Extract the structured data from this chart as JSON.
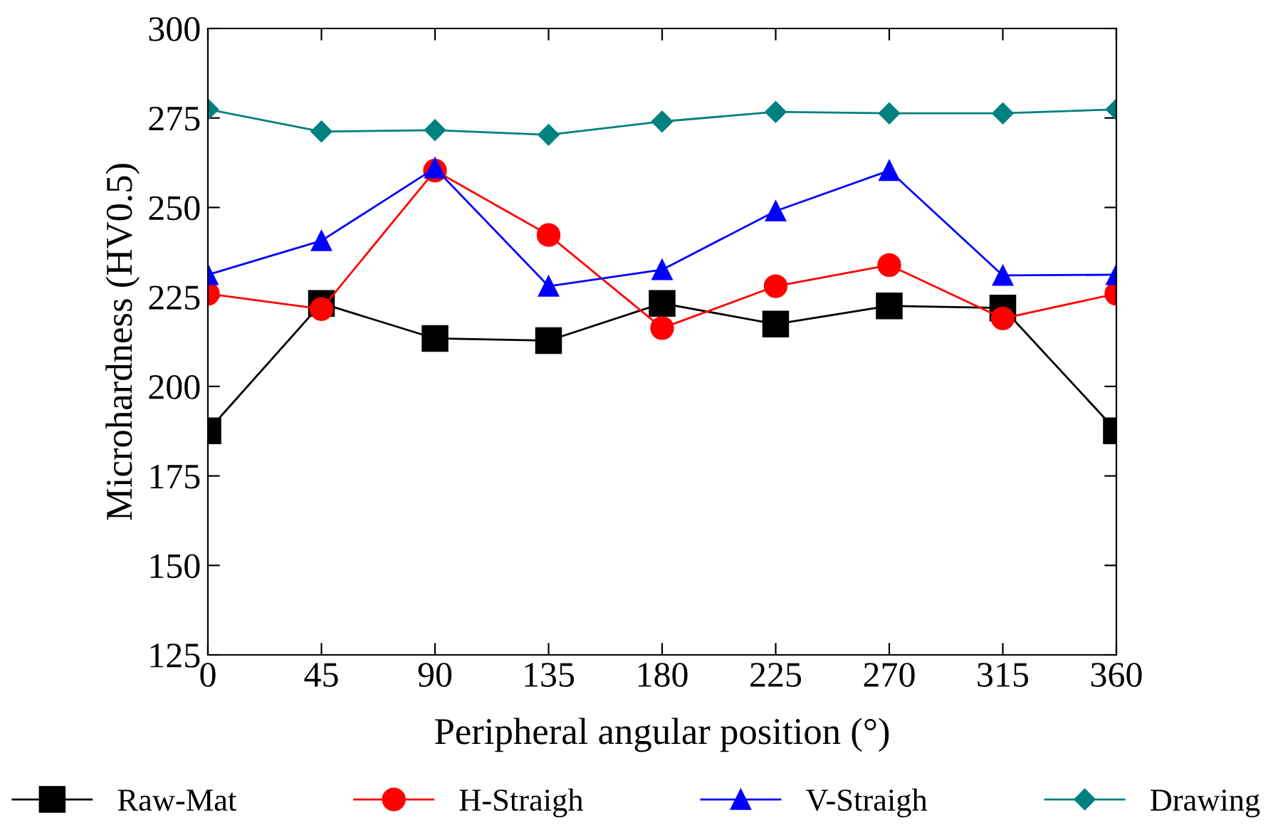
{
  "chart_data": {
    "type": "line",
    "xlabel": "Peripheral angular position (°)",
    "ylabel": "Microhardness (HV0.5)",
    "x": [
      0,
      45,
      90,
      135,
      180,
      225,
      270,
      315,
      360
    ],
    "xlim": [
      0,
      360
    ],
    "xticks": [
      0,
      45,
      90,
      135,
      180,
      225,
      270,
      315,
      360
    ],
    "ylim": [
      125,
      300
    ],
    "yticks": [
      125,
      150,
      175,
      200,
      225,
      250,
      275,
      300
    ],
    "grid": false,
    "legend": "bottom",
    "line_style": "solid",
    "series": [
      {
        "name": "Raw-Mat",
        "color": "#000000",
        "marker": "square",
        "values": [
          187.6,
          223.2,
          213.4,
          212.8,
          223.2,
          217.4,
          222.5,
          221.9,
          187.6
        ]
      },
      {
        "name": "H-Straigh",
        "color": "#ff0000",
        "marker": "circle",
        "values": [
          225.9,
          221.6,
          260.3,
          242.3,
          216.3,
          228,
          233.9,
          219,
          225.9
        ]
      },
      {
        "name": "V-Straigh",
        "color": "#0000ff",
        "marker": "triangle",
        "values": [
          231.2,
          240.7,
          261,
          228,
          232.6,
          249,
          260.3,
          231,
          231.2
        ]
      },
      {
        "name": "Drawing",
        "color": "#008080",
        "marker": "diamond",
        "values": [
          277.4,
          271.2,
          271.6,
          270.3,
          274,
          276.7,
          276.3,
          276.3,
          277.4
        ]
      }
    ]
  }
}
